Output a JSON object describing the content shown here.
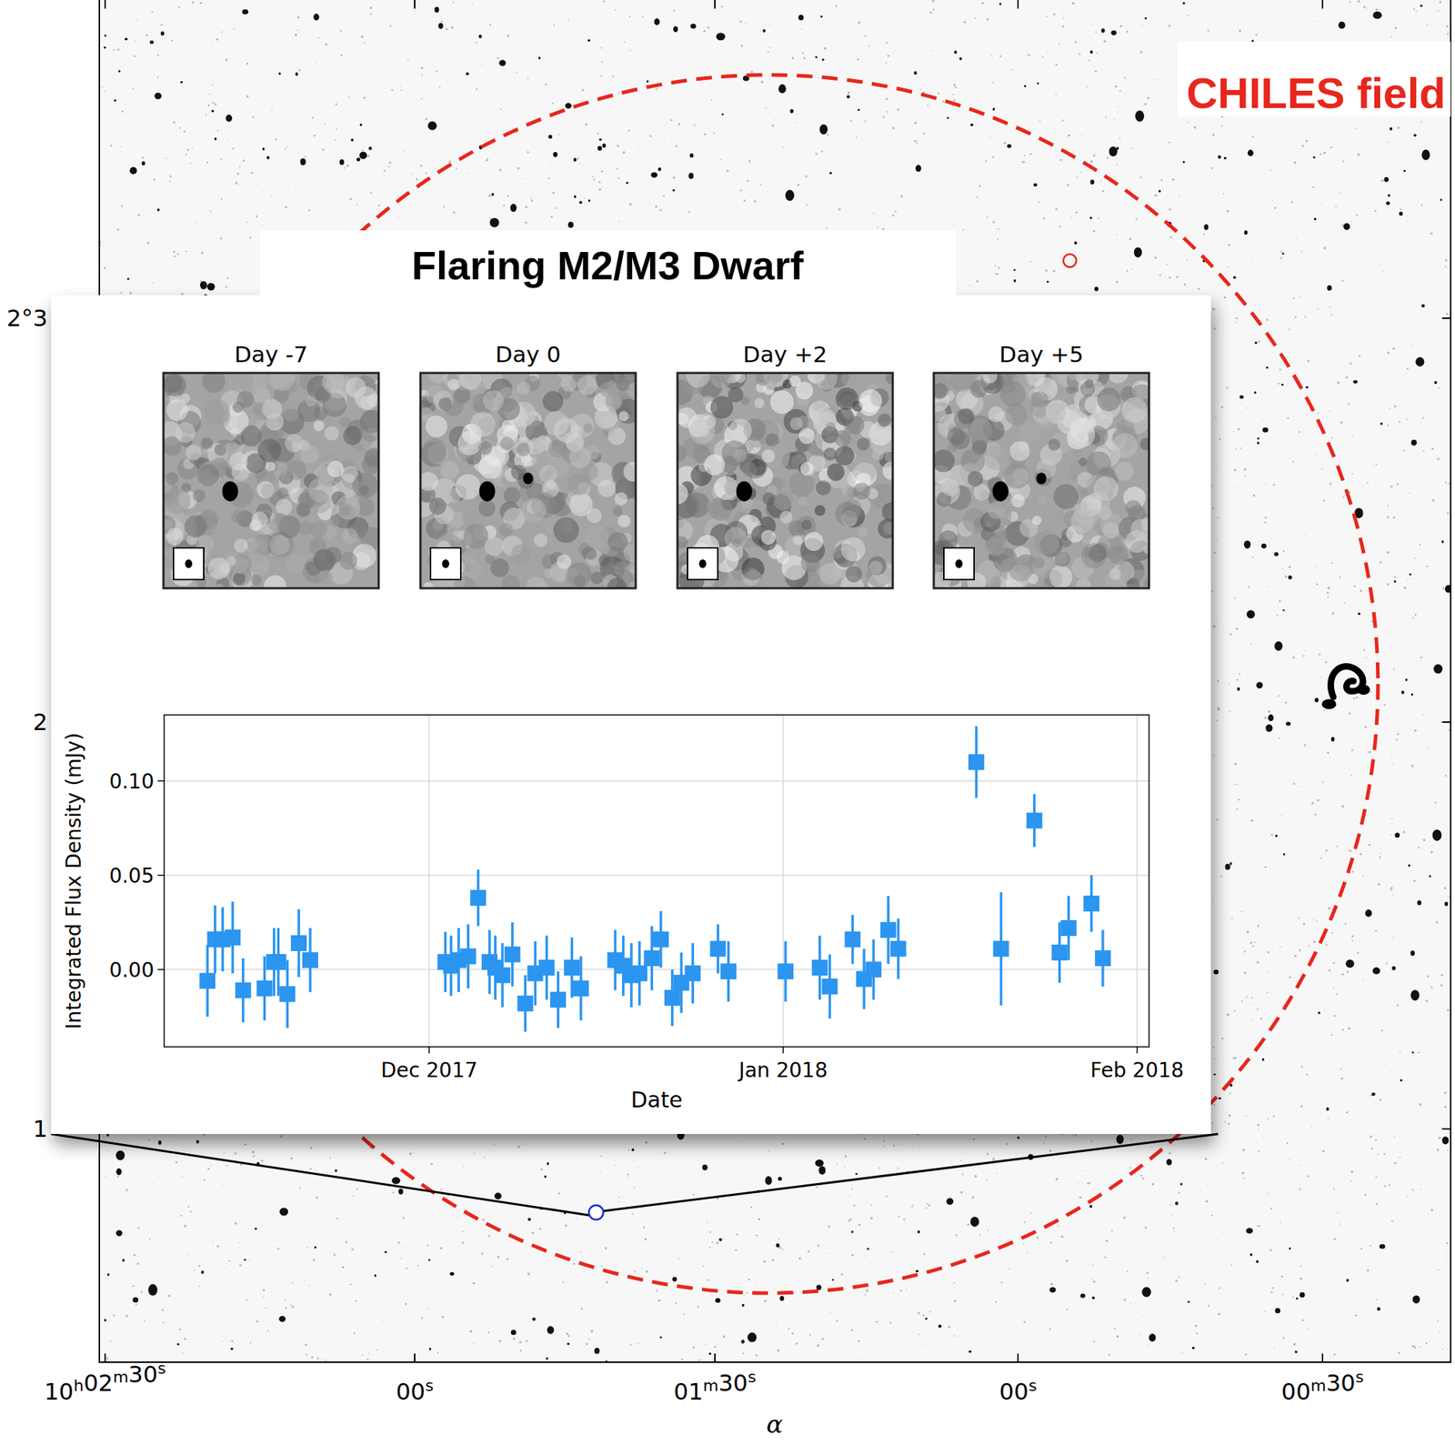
{
  "chart_data": {
    "type": "scatter",
    "title": "Flaring M2/M3 Dwarf",
    "x_label": "Date",
    "y_label": "Integrated Flux Density (mJy)",
    "color": "#2b95f0",
    "marker": "square",
    "grid": true,
    "xlim": [
      "2017-11-07T19:00",
      "2018-02-02T01:00"
    ],
    "ylim": [
      -0.041,
      0.135
    ],
    "xticks": [
      {
        "value": "2017-12-01T00:00",
        "label": "Dec 2017"
      },
      {
        "value": "2018-01-01T00:00",
        "label": "Jan 2018"
      },
      {
        "value": "2018-02-01T00:00",
        "label": "Feb 2018"
      }
    ],
    "yticks": [
      {
        "value": 0,
        "label": "0.00"
      },
      {
        "value": 0.05,
        "label": "0.05"
      },
      {
        "value": 0.1,
        "label": "0.10"
      }
    ],
    "x": [
      "2017-11-11T14:00",
      "2017-11-12T06:00",
      "2017-11-12T22:00",
      "2017-11-13T19:00",
      "2017-11-14T17:00",
      "2017-11-16T14:00",
      "2017-11-17T10:00",
      "2017-11-17T19:00",
      "2017-11-18T14:00",
      "2017-11-19T14:00",
      "2017-11-20T14:00",
      "2017-12-02T10:00",
      "2017-12-02T22:00",
      "2017-12-03T14:00",
      "2017-12-04T10:00",
      "2017-12-05T07:00",
      "2017-12-06T07:00",
      "2017-12-06T19:00",
      "2017-12-07T10:00",
      "2017-12-08T07:00",
      "2017-12-09T10:00",
      "2017-12-10T07:00",
      "2017-12-11T07:00",
      "2017-12-12T07:00",
      "2017-12-13T12:00",
      "2017-12-14T07:00",
      "2017-12-17T07:00",
      "2017-12-18T00:00",
      "2017-12-18T17:00",
      "2017-12-19T10:00",
      "2017-12-20T12:00",
      "2017-12-21T07:00",
      "2017-12-22T07:00",
      "2017-12-23T02:00",
      "2017-12-24T02:00",
      "2017-12-26T07:00",
      "2017-12-27T05:00",
      "2018-01-01T05:00",
      "2018-01-04T05:00",
      "2018-01-05T02:00",
      "2018-01-07T02:00",
      "2018-01-08T02:00",
      "2018-01-08T22:00",
      "2018-01-10T05:00",
      "2018-01-11T02:00",
      "2018-01-17T22:00",
      "2018-01-20T02:00",
      "2018-01-23T00:00",
      "2018-01-25T05:00",
      "2018-01-26T00:00",
      "2018-01-28T00:00",
      "2018-01-29T00:00"
    ],
    "values": [
      -0.006,
      0.016,
      0.016,
      0.017,
      -0.011,
      -0.01,
      0.004,
      0.004,
      -0.013,
      0.014,
      0.005,
      0.004,
      0.002,
      0.005,
      0.007,
      0.038,
      0.004,
      0.001,
      -0.003,
      0.008,
      -0.018,
      -0.002,
      0.001,
      -0.016,
      0.001,
      -0.01,
      0.005,
      0.002,
      -0.003,
      -0.002,
      0.006,
      0.016,
      -0.015,
      -0.007,
      -0.002,
      0.011,
      -0.001,
      -0.001,
      0.001,
      -0.009,
      0.016,
      -0.005,
      0.0,
      0.021,
      0.011,
      0.11,
      0.011,
      0.079,
      0.009,
      0.022,
      0.035,
      0.006
    ],
    "errors": [
      0.019,
      0.018,
      0.017,
      0.019,
      0.017,
      0.017,
      0.018,
      0.018,
      0.018,
      0.018,
      0.017,
      0.016,
      0.016,
      0.017,
      0.017,
      0.015,
      0.017,
      0.017,
      0.017,
      0.017,
      0.015,
      0.017,
      0.017,
      0.015,
      0.016,
      0.017,
      0.016,
      0.016,
      0.017,
      0.017,
      0.017,
      0.015,
      0.015,
      0.016,
      0.016,
      0.013,
      0.016,
      0.016,
      0.017,
      0.017,
      0.013,
      0.016,
      0.016,
      0.018,
      0.016,
      0.019,
      0.03,
      0.014,
      0.016,
      0.017,
      0.015,
      0.015
    ]
  },
  "image_panels": [
    {
      "label": "Day -7",
      "flare_visible": false
    },
    {
      "label": "Day 0",
      "flare_visible": true
    },
    {
      "label": "Day +2",
      "flare_visible": false
    },
    {
      "label": "Day +5",
      "flare_visible": true
    }
  ],
  "sky_map": {
    "field_label": "CHILES field",
    "ra_label": "α",
    "ra_tick_labels": [
      "10h02m30s",
      "00s",
      "01m30s",
      "00s",
      "00m30s"
    ],
    "dec_tick_labels": [
      "2°3",
      "2",
      "1"
    ]
  }
}
